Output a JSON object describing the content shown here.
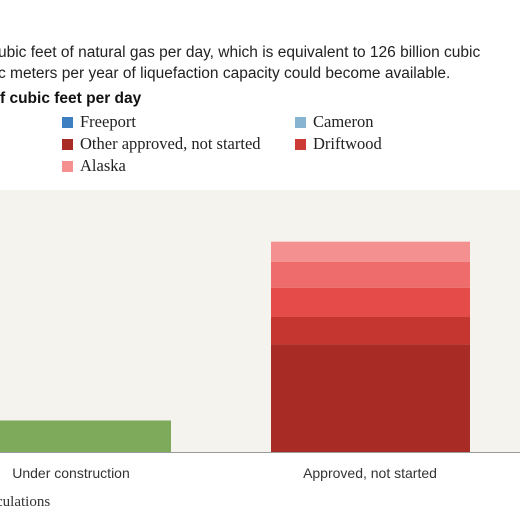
{
  "header": {
    "subtitle_line1": "ubic feet of natural gas per day, which is equivalent to 126 billion cubic",
    "subtitle_line2": "c meters per year of liquefaction capacity could become available.",
    "units_label": "f cubic feet per day"
  },
  "legend": [
    {
      "label": "Freeport",
      "color": "#3d7fc1"
    },
    {
      "label": "Cameron",
      "color": "#86b4d1"
    },
    {
      "label": "Other approved, not started",
      "color": "#a82b26"
    },
    {
      "label": "Driftwood",
      "color": "#cc3a35"
    },
    {
      "label": "Alaska",
      "color": "#f49090"
    }
  ],
  "footer": {
    "source_fragment": "culations"
  },
  "chart_data": {
    "type": "bar",
    "stacked": true,
    "categories": [
      "Under construction",
      "Approved, not started"
    ],
    "series": [
      {
        "values": [
          0.85,
          0
        ],
        "color": "#7eaa5c"
      },
      {
        "label_ref": "Other approved, not started",
        "values": [
          0,
          2.9
        ],
        "color": "#a82b26"
      },
      {
        "label_ref": "Driftwood",
        "values": [
          0,
          0.75
        ],
        "color": "#c63631"
      },
      {
        "values": [
          0,
          0.78
        ],
        "color": "#e54b48"
      },
      {
        "values": [
          0,
          0.7
        ],
        "color": "#ee6c6c"
      },
      {
        "label_ref": "Alaska",
        "values": [
          0,
          0.54
        ],
        "color": "#f49090"
      }
    ],
    "ylim": [
      0,
      6.2
    ],
    "grid": false,
    "legend_position": "top"
  }
}
